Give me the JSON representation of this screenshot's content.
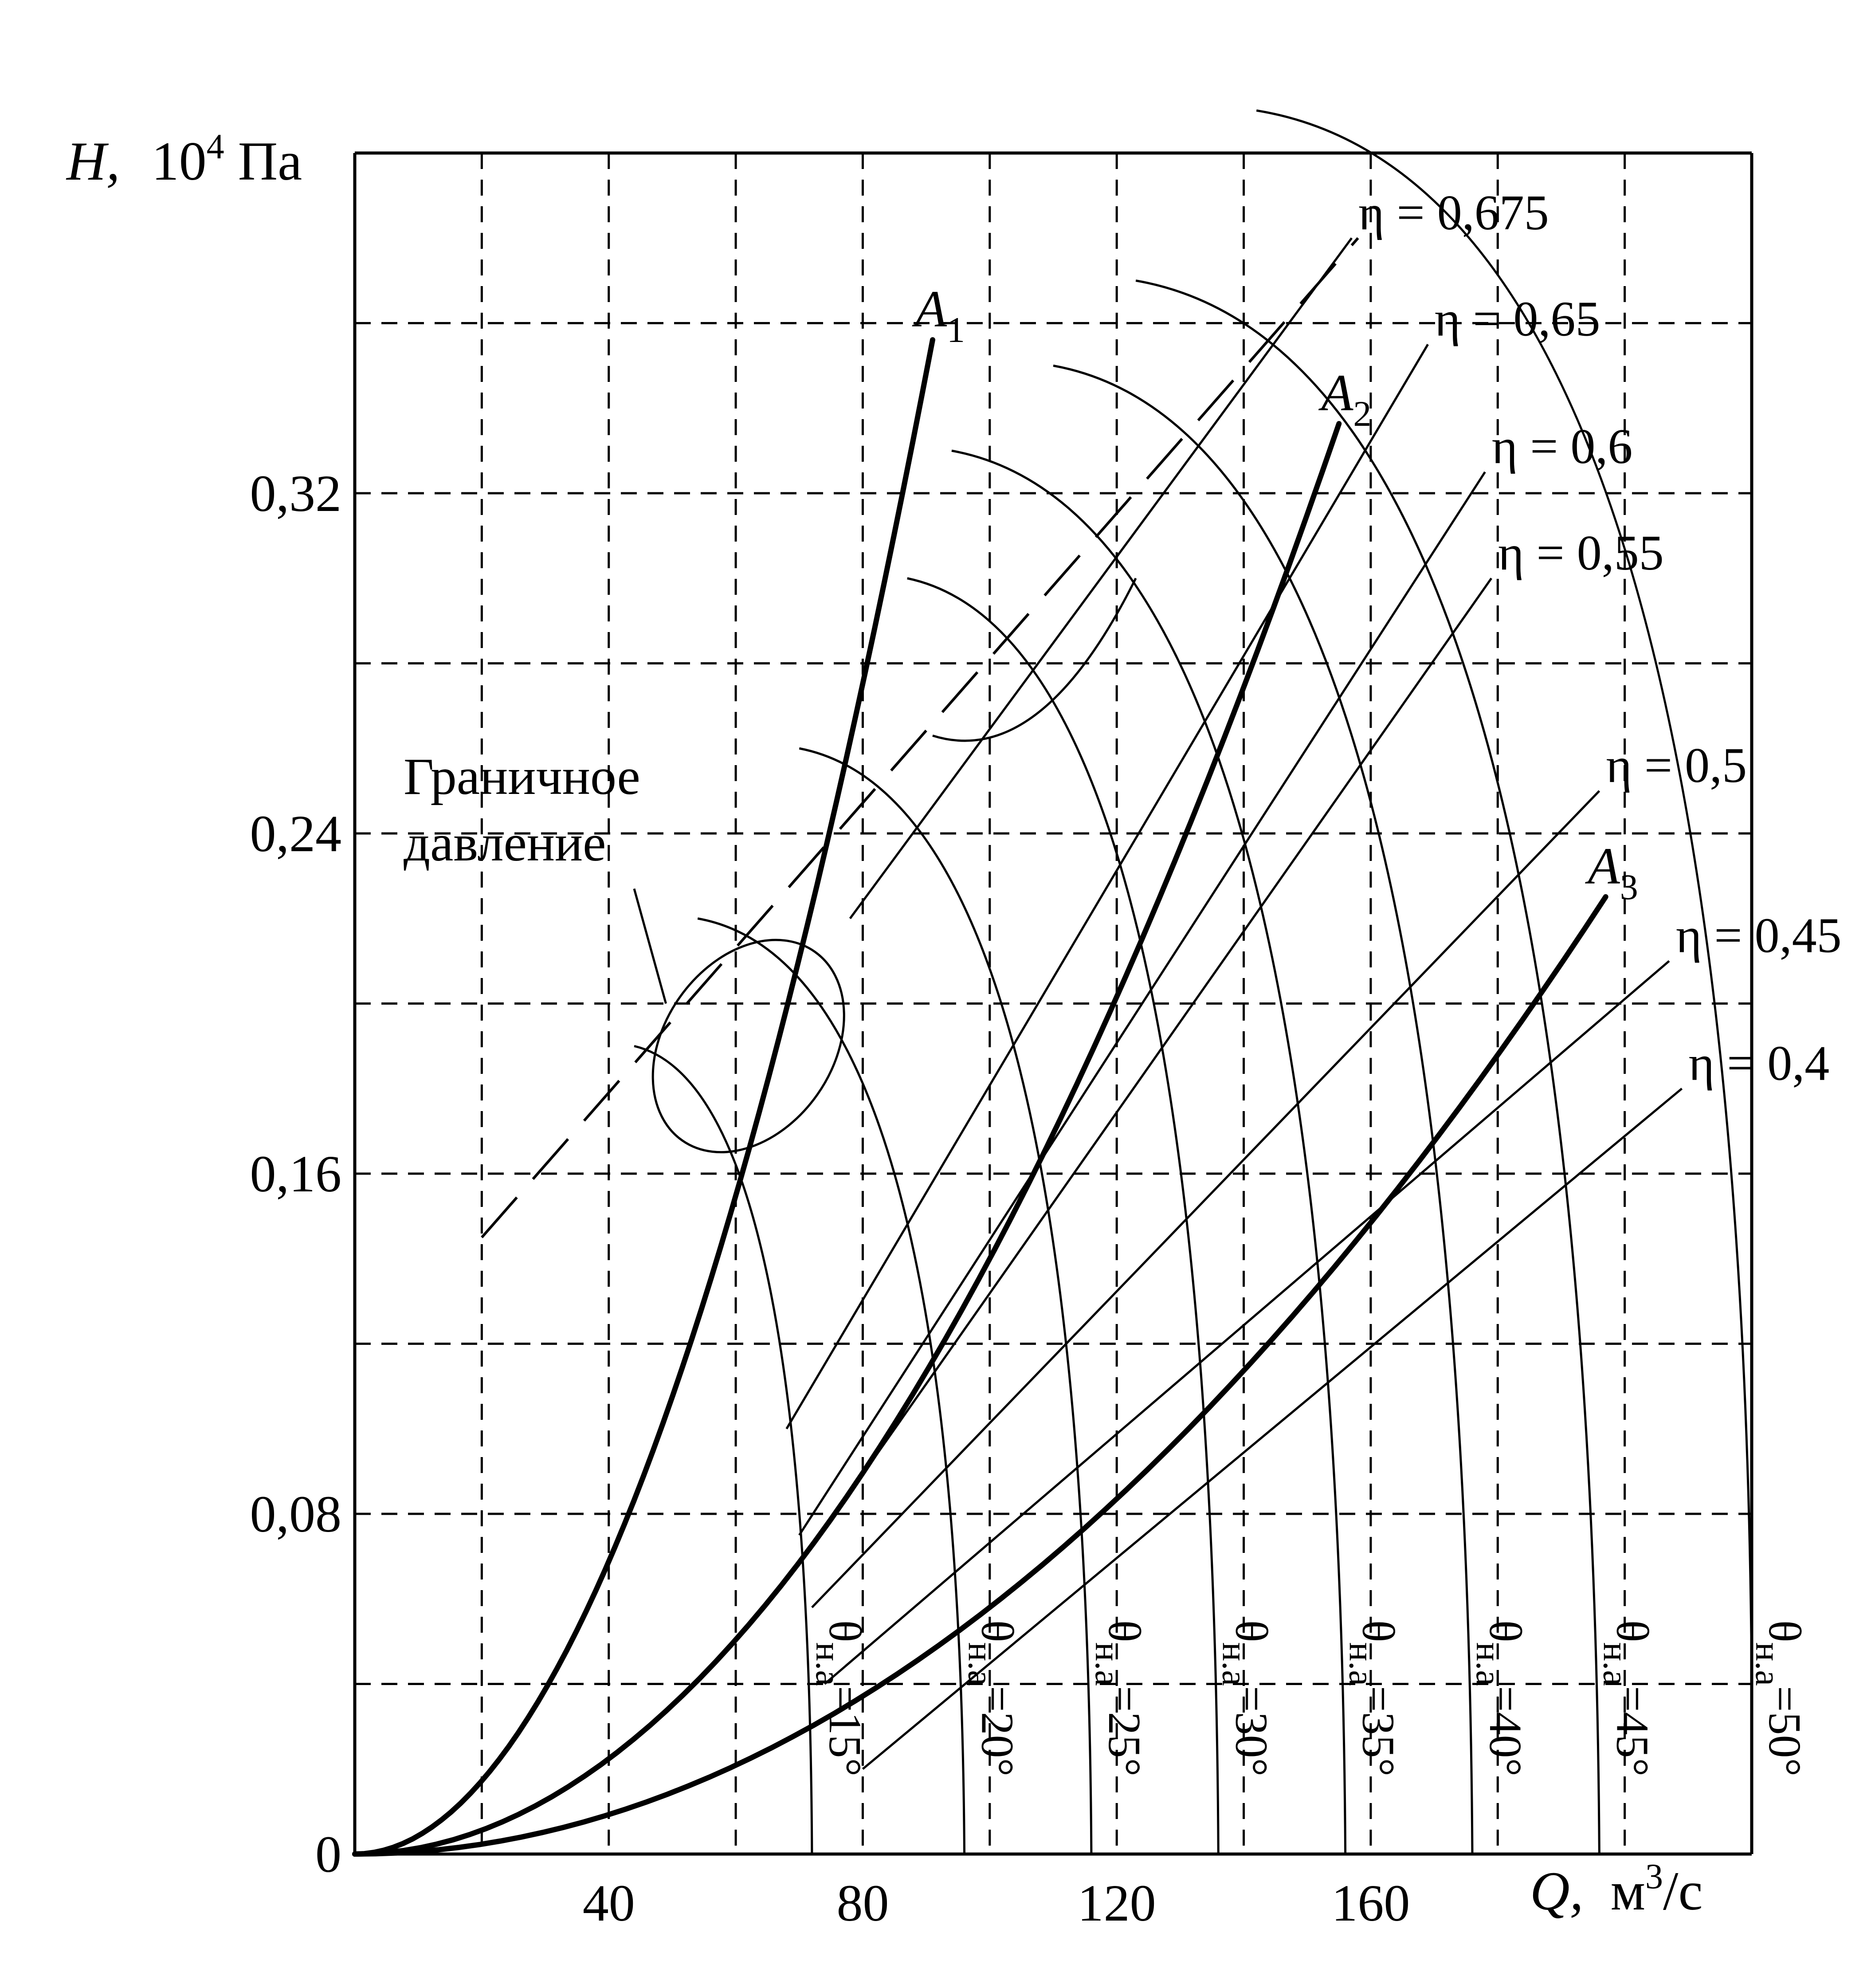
{
  "chart_data": {
    "type": "line",
    "xlabel_var": "Q,",
    "xlabel_unit": "м",
    "xlabel_sup": "3",
    "xlabel_tail": "/с",
    "ylabel_var": "H,",
    "ylabel_unit": "10",
    "ylabel_sup": "4",
    "ylabel_tail": " Па",
    "xlim": [
      0,
      220
    ],
    "ylim": [
      0,
      0.4
    ],
    "x_ticks": [
      {
        "v": 40,
        "label": "40"
      },
      {
        "v": 80,
        "label": "80"
      },
      {
        "v": 120,
        "label": "120"
      },
      {
        "v": 160,
        "label": "160"
      }
    ],
    "y_ticks": [
      {
        "v": 0,
        "label": "0"
      },
      {
        "v": 0.08,
        "label": "0,08"
      },
      {
        "v": 0.16,
        "label": "0,16"
      },
      {
        "v": 0.24,
        "label": "0,24"
      },
      {
        "v": 0.32,
        "label": "0,32"
      }
    ],
    "grid_x": [
      20,
      40,
      60,
      80,
      100,
      120,
      140,
      160,
      180,
      200
    ],
    "grid_y": [
      0.04,
      0.08,
      0.12,
      0.16,
      0.2,
      0.24,
      0.28,
      0.32,
      0.36
    ],
    "grid": "dashed",
    "network_curves": [
      {
        "name": "A",
        "sub": "1",
        "k": 4.3e-05,
        "q_end": 91
      },
      {
        "name": "A",
        "sub": "2",
        "k": 1.4e-05,
        "q_end": 155
      },
      {
        "name": "A",
        "sub": "3",
        "k": 5.8e-06,
        "q_end": 197
      }
    ],
    "theta_curves": [
      {
        "prefix": "θ",
        "sub": "н.а",
        "value": "=15°",
        "peak": [
          44,
          0.19
        ],
        "end": [
          72,
          0
        ]
      },
      {
        "prefix": "θ",
        "sub": "н.а",
        "value": "=20°",
        "peak": [
          54,
          0.22
        ],
        "end": [
          96,
          0
        ]
      },
      {
        "prefix": "θ",
        "sub": "н.а",
        "value": "=25°",
        "peak": [
          70,
          0.26
        ],
        "end": [
          116,
          0
        ]
      },
      {
        "prefix": "θ",
        "sub": "н.а",
        "value": "=30°",
        "peak": [
          87,
          0.3
        ],
        "end": [
          136,
          0
        ]
      },
      {
        "prefix": "θ",
        "sub": "н.а",
        "value": "=35°",
        "peak": [
          94,
          0.33
        ],
        "end": [
          156,
          0
        ]
      },
      {
        "prefix": "θ",
        "sub": "н.а",
        "value": "=40°",
        "peak": [
          110,
          0.35
        ],
        "end": [
          176,
          0
        ]
      },
      {
        "prefix": "θ",
        "sub": "н.а",
        "value": "=45°",
        "peak": [
          123,
          0.37
        ],
        "end": [
          196,
          0
        ]
      },
      {
        "prefix": "θ",
        "sub": "н.а",
        "value": "=50°",
        "peak": [
          142,
          0.41
        ],
        "end": [
          220,
          0.04
        ]
      }
    ],
    "efficiency_lines": [
      {
        "label": "η = 0,675",
        "start": [
          78,
          0.22
        ],
        "end": [
          157,
          0.38
        ]
      },
      {
        "label": "η = 0,65",
        "start": [
          68,
          0.1
        ],
        "end": [
          169,
          0.355
        ]
      },
      {
        "label": "η = 0,6",
        "start": [
          70,
          0.075
        ],
        "end": [
          178,
          0.325
        ]
      },
      {
        "label": "η = 0,55",
        "start": [
          70,
          0.068
        ],
        "end": [
          179,
          0.3
        ]
      },
      {
        "label": "η = 0,5",
        "start": [
          72,
          0.058
        ],
        "end": [
          196,
          0.25
        ]
      },
      {
        "label": "η = 0,45",
        "start": [
          74,
          0.04
        ],
        "end": [
          207,
          0.21
        ]
      },
      {
        "label": "η = 0,4",
        "start": [
          80,
          0.02
        ],
        "end": [
          209,
          0.18
        ]
      }
    ],
    "boundary_pressure": {
      "start": [
        20,
        0.145
      ],
      "end": [
        158,
        0.38
      ]
    },
    "annotation": [
      "Граничное",
      "давление"
    ]
  }
}
